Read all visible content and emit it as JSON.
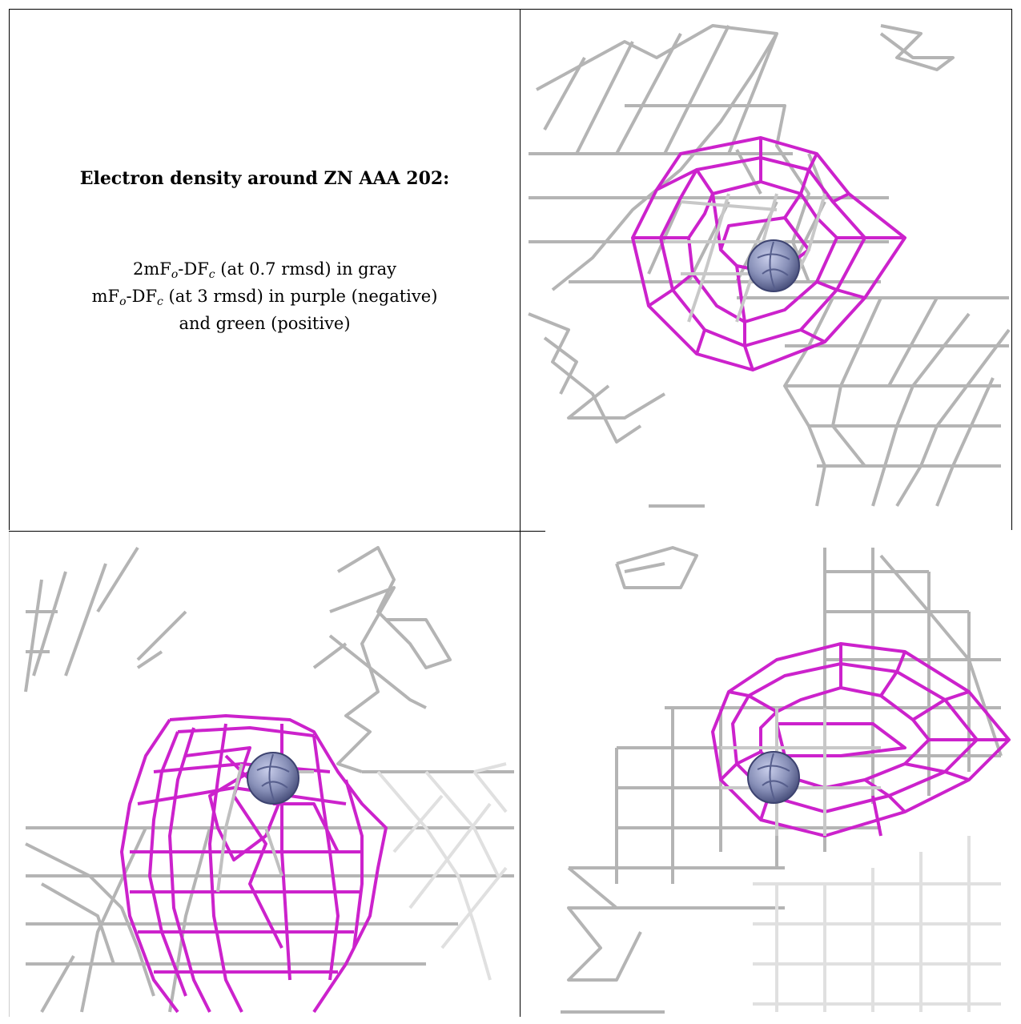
{
  "caption": {
    "title": "Electron density around ZN AAA 202:",
    "line1": {
      "pre": "2mF",
      "sub1": "o",
      "mid": "-DF",
      "sub2": "c",
      "post": " (at 0.7 rmsd) in gray"
    },
    "line2": {
      "pre": "mF",
      "sub1": "o",
      "mid": "-DF",
      "sub2": "c",
      "post": " (at 3 rmsd) in purple (negative)"
    },
    "line3": "and green (positive)"
  },
  "colors": {
    "map_2fofc": "#b4b4b4",
    "map_fofc_negative": "#cc22cc",
    "map_fofc_positive": "#22aa22",
    "zinc_atom": "#8890b8",
    "border": "#000000"
  },
  "panels": [
    {
      "id": "view-1"
    },
    {
      "id": "view-2"
    },
    {
      "id": "view-3"
    }
  ]
}
